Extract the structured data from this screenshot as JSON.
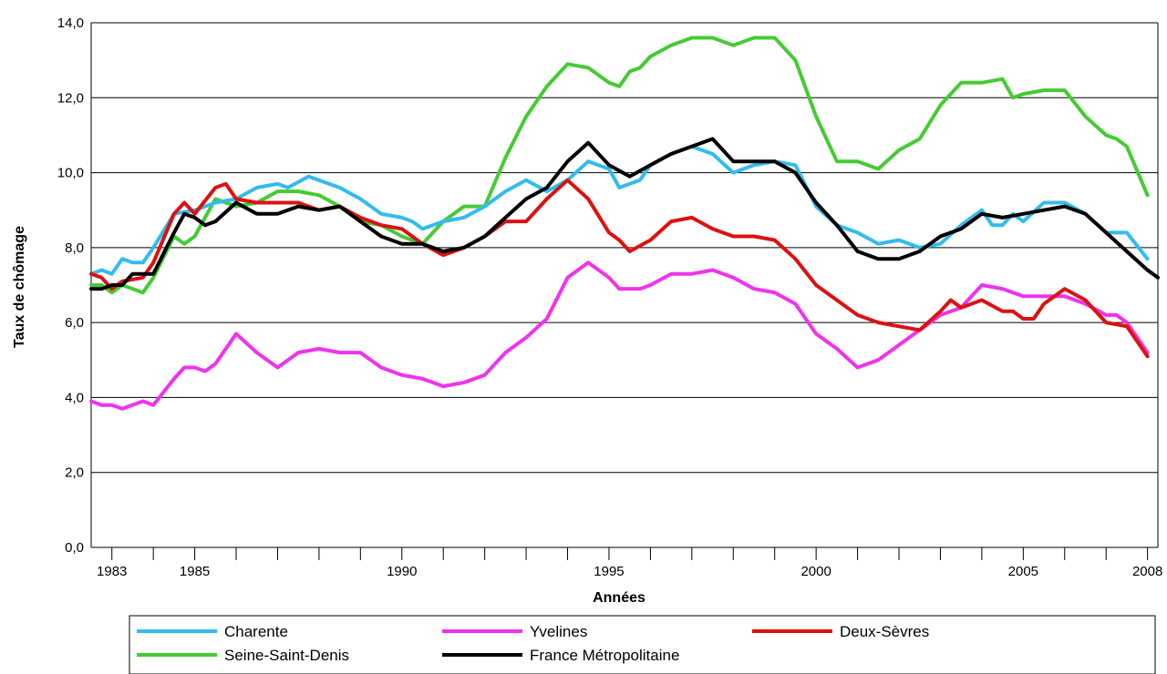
{
  "chart_data": {
    "type": "line",
    "title": "",
    "xlabel": "Années",
    "ylabel": "Taux de chômage",
    "xlim": [
      1982.5,
      2008.25
    ],
    "ylim": [
      0,
      14
    ],
    "y_ticks": [
      "0,0",
      "2,0",
      "4,0",
      "6,0",
      "8,0",
      "10,0",
      "12,0",
      "14,0"
    ],
    "x_ticks": [
      {
        "year": 1983,
        "label": "1983"
      },
      {
        "year": 1985,
        "label": "1985"
      },
      {
        "year": 1990,
        "label": "1990"
      },
      {
        "year": 1995,
        "label": "1995"
      },
      {
        "year": 2000,
        "label": "2000"
      },
      {
        "year": 2005,
        "label": "2005"
      },
      {
        "year": 2008,
        "label": "2008"
      }
    ],
    "grid": "horizontal",
    "legend": "bottom",
    "series": [
      {
        "name": "Charente",
        "color": "#33bbee",
        "points": [
          [
            1982.5,
            7.3
          ],
          [
            1982.75,
            7.4
          ],
          [
            1983,
            7.3
          ],
          [
            1983.25,
            7.7
          ],
          [
            1983.5,
            7.6
          ],
          [
            1983.75,
            7.6
          ],
          [
            1984,
            8.0
          ],
          [
            1984.5,
            8.9
          ],
          [
            1985,
            9.0
          ],
          [
            1985.5,
            9.2
          ],
          [
            1986,
            9.3
          ],
          [
            1986.5,
            9.6
          ],
          [
            1987,
            9.7
          ],
          [
            1987.25,
            9.6
          ],
          [
            1987.75,
            9.9
          ],
          [
            1988.5,
            9.6
          ],
          [
            1989,
            9.3
          ],
          [
            1989.5,
            8.9
          ],
          [
            1990,
            8.8
          ],
          [
            1990.25,
            8.7
          ],
          [
            1990.5,
            8.5
          ],
          [
            1991,
            8.7
          ],
          [
            1991.5,
            8.8
          ],
          [
            1992,
            9.1
          ],
          [
            1992.5,
            9.5
          ],
          [
            1993,
            9.8
          ],
          [
            1993.5,
            9.5
          ],
          [
            1994,
            9.8
          ],
          [
            1994.5,
            10.3
          ],
          [
            1995,
            10.1
          ],
          [
            1995.25,
            9.6
          ],
          [
            1995.75,
            9.8
          ],
          [
            1996,
            10.2
          ],
          [
            1996.5,
            10.5
          ],
          [
            1997,
            10.7
          ],
          [
            1997.5,
            10.5
          ],
          [
            1998,
            10.0
          ],
          [
            1998.5,
            10.2
          ],
          [
            1999,
            10.3
          ],
          [
            1999.5,
            10.2
          ],
          [
            2000,
            9.1
          ],
          [
            2000.5,
            8.6
          ],
          [
            2001,
            8.4
          ],
          [
            2001.5,
            8.1
          ],
          [
            2002,
            8.2
          ],
          [
            2002.5,
            8.0
          ],
          [
            2003,
            8.1
          ],
          [
            2003.5,
            8.6
          ],
          [
            2004,
            9.0
          ],
          [
            2004.25,
            8.6
          ],
          [
            2004.5,
            8.6
          ],
          [
            2004.75,
            8.9
          ],
          [
            2005,
            8.7
          ],
          [
            2005.5,
            9.2
          ],
          [
            2006,
            9.2
          ],
          [
            2006.5,
            8.9
          ],
          [
            2007,
            8.4
          ],
          [
            2007.5,
            8.4
          ],
          [
            2008,
            7.7
          ]
        ]
      },
      {
        "name": "Seine-Saint-Denis",
        "color": "#44cc33",
        "points": [
          [
            1982.5,
            7.0
          ],
          [
            1982.75,
            7.0
          ],
          [
            1983,
            6.8
          ],
          [
            1983.25,
            7.0
          ],
          [
            1983.75,
            6.8
          ],
          [
            1984,
            7.2
          ],
          [
            1984.5,
            8.3
          ],
          [
            1984.75,
            8.1
          ],
          [
            1985,
            8.3
          ],
          [
            1985.5,
            9.3
          ],
          [
            1986,
            9.1
          ],
          [
            1986.5,
            9.2
          ],
          [
            1987,
            9.5
          ],
          [
            1987.5,
            9.5
          ],
          [
            1988,
            9.4
          ],
          [
            1988.5,
            9.1
          ],
          [
            1989,
            8.7
          ],
          [
            1989.5,
            8.6
          ],
          [
            1990,
            8.3
          ],
          [
            1990.5,
            8.1
          ],
          [
            1991,
            8.7
          ],
          [
            1991.5,
            9.1
          ],
          [
            1992,
            9.1
          ],
          [
            1992.5,
            10.4
          ],
          [
            1993,
            11.5
          ],
          [
            1993.5,
            12.3
          ],
          [
            1994,
            12.9
          ],
          [
            1994.5,
            12.8
          ],
          [
            1995,
            12.4
          ],
          [
            1995.25,
            12.3
          ],
          [
            1995.5,
            12.7
          ],
          [
            1995.75,
            12.8
          ],
          [
            1996,
            13.1
          ],
          [
            1996.5,
            13.4
          ],
          [
            1997,
            13.6
          ],
          [
            1997.5,
            13.6
          ],
          [
            1998,
            13.4
          ],
          [
            1998.5,
            13.6
          ],
          [
            1999,
            13.6
          ],
          [
            1999.5,
            13.0
          ],
          [
            2000,
            11.5
          ],
          [
            2000.5,
            10.3
          ],
          [
            2001,
            10.3
          ],
          [
            2001.5,
            10.1
          ],
          [
            2002,
            10.6
          ],
          [
            2002.5,
            10.9
          ],
          [
            2003,
            11.8
          ],
          [
            2003.5,
            12.4
          ],
          [
            2004,
            12.4
          ],
          [
            2004.5,
            12.5
          ],
          [
            2004.75,
            12.0
          ],
          [
            2005,
            12.1
          ],
          [
            2005.5,
            12.2
          ],
          [
            2006,
            12.2
          ],
          [
            2006.5,
            11.5
          ],
          [
            2007,
            11.0
          ],
          [
            2007.25,
            10.9
          ],
          [
            2007.5,
            10.7
          ],
          [
            2008,
            9.4
          ]
        ]
      },
      {
        "name": "Yvelines",
        "color": "#ee33ee",
        "points": [
          [
            1982.5,
            3.9
          ],
          [
            1982.75,
            3.8
          ],
          [
            1983,
            3.8
          ],
          [
            1983.25,
            3.7
          ],
          [
            1983.75,
            3.9
          ],
          [
            1984,
            3.8
          ],
          [
            1984.5,
            4.5
          ],
          [
            1984.75,
            4.8
          ],
          [
            1985,
            4.8
          ],
          [
            1985.25,
            4.7
          ],
          [
            1985.5,
            4.9
          ],
          [
            1986,
            5.7
          ],
          [
            1986.5,
            5.2
          ],
          [
            1987,
            4.8
          ],
          [
            1987.5,
            5.2
          ],
          [
            1988,
            5.3
          ],
          [
            1988.5,
            5.2
          ],
          [
            1989,
            5.2
          ],
          [
            1989.5,
            4.8
          ],
          [
            1990,
            4.6
          ],
          [
            1990.5,
            4.5
          ],
          [
            1991,
            4.3
          ],
          [
            1991.5,
            4.4
          ],
          [
            1992,
            4.6
          ],
          [
            1992.5,
            5.2
          ],
          [
            1993,
            5.6
          ],
          [
            1993.5,
            6.1
          ],
          [
            1994,
            7.2
          ],
          [
            1994.5,
            7.6
          ],
          [
            1995,
            7.2
          ],
          [
            1995.25,
            6.9
          ],
          [
            1995.75,
            6.9
          ],
          [
            1996,
            7.0
          ],
          [
            1996.5,
            7.3
          ],
          [
            1997,
            7.3
          ],
          [
            1997.5,
            7.4
          ],
          [
            1998,
            7.2
          ],
          [
            1998.5,
            6.9
          ],
          [
            1999,
            6.8
          ],
          [
            1999.5,
            6.5
          ],
          [
            2000,
            5.7
          ],
          [
            2000.5,
            5.3
          ],
          [
            2001,
            4.8
          ],
          [
            2001.5,
            5.0
          ],
          [
            2002,
            5.4
          ],
          [
            2002.5,
            5.8
          ],
          [
            2003,
            6.2
          ],
          [
            2003.5,
            6.4
          ],
          [
            2004,
            7.0
          ],
          [
            2004.5,
            6.9
          ],
          [
            2005,
            6.7
          ],
          [
            2005.5,
            6.7
          ],
          [
            2006,
            6.7
          ],
          [
            2006.5,
            6.5
          ],
          [
            2007,
            6.2
          ],
          [
            2007.25,
            6.2
          ],
          [
            2007.5,
            6.0
          ],
          [
            2008,
            5.2
          ]
        ]
      },
      {
        "name": "Deux-Sèvres",
        "color": "#dd1111",
        "points": [
          [
            1982.5,
            7.3
          ],
          [
            1982.75,
            7.2
          ],
          [
            1983,
            6.9
          ],
          [
            1983.25,
            7.1
          ],
          [
            1983.75,
            7.2
          ],
          [
            1984,
            7.6
          ],
          [
            1984.5,
            8.9
          ],
          [
            1984.75,
            9.2
          ],
          [
            1985,
            8.9
          ],
          [
            1985.5,
            9.6
          ],
          [
            1985.75,
            9.7
          ],
          [
            1986,
            9.3
          ],
          [
            1986.5,
            9.2
          ],
          [
            1987,
            9.2
          ],
          [
            1987.5,
            9.2
          ],
          [
            1988,
            9.0
          ],
          [
            1988.5,
            9.1
          ],
          [
            1989,
            8.8
          ],
          [
            1989.5,
            8.6
          ],
          [
            1990,
            8.5
          ],
          [
            1990.5,
            8.1
          ],
          [
            1991,
            7.8
          ],
          [
            1991.5,
            8.0
          ],
          [
            1992,
            8.3
          ],
          [
            1992.5,
            8.7
          ],
          [
            1993,
            8.7
          ],
          [
            1993.5,
            9.3
          ],
          [
            1994,
            9.8
          ],
          [
            1994.5,
            9.3
          ],
          [
            1995,
            8.4
          ],
          [
            1995.25,
            8.2
          ],
          [
            1995.5,
            7.9
          ],
          [
            1996,
            8.2
          ],
          [
            1996.5,
            8.7
          ],
          [
            1997,
            8.8
          ],
          [
            1997.5,
            8.5
          ],
          [
            1998,
            8.3
          ],
          [
            1998.5,
            8.3
          ],
          [
            1999,
            8.2
          ],
          [
            1999.5,
            7.7
          ],
          [
            2000,
            7.0
          ],
          [
            2000.5,
            6.6
          ],
          [
            2001,
            6.2
          ],
          [
            2001.5,
            6.0
          ],
          [
            2002,
            5.9
          ],
          [
            2002.5,
            5.8
          ],
          [
            2003,
            6.3
          ],
          [
            2003.25,
            6.6
          ],
          [
            2003.5,
            6.4
          ],
          [
            2004,
            6.6
          ],
          [
            2004.5,
            6.3
          ],
          [
            2004.75,
            6.3
          ],
          [
            2005,
            6.1
          ],
          [
            2005.25,
            6.1
          ],
          [
            2005.5,
            6.5
          ],
          [
            2006,
            6.9
          ],
          [
            2006.5,
            6.6
          ],
          [
            2007,
            6.0
          ],
          [
            2007.5,
            5.9
          ],
          [
            2008,
            5.1
          ]
        ]
      },
      {
        "name": "France Métropolitaine",
        "color": "#000000",
        "points": [
          [
            1982.5,
            6.9
          ],
          [
            1982.75,
            6.9
          ],
          [
            1983,
            7.0
          ],
          [
            1983.25,
            7.0
          ],
          [
            1983.5,
            7.3
          ],
          [
            1984,
            7.3
          ],
          [
            1984.5,
            8.4
          ],
          [
            1984.75,
            8.9
          ],
          [
            1985,
            8.8
          ],
          [
            1985.25,
            8.6
          ],
          [
            1985.5,
            8.7
          ],
          [
            1986,
            9.2
          ],
          [
            1986.5,
            8.9
          ],
          [
            1987,
            8.9
          ],
          [
            1987.5,
            9.1
          ],
          [
            1988,
            9.0
          ],
          [
            1988.5,
            9.1
          ],
          [
            1989,
            8.7
          ],
          [
            1989.5,
            8.3
          ],
          [
            1990,
            8.1
          ],
          [
            1990.5,
            8.1
          ],
          [
            1991,
            7.9
          ],
          [
            1991.5,
            8.0
          ],
          [
            1992,
            8.3
          ],
          [
            1992.5,
            8.8
          ],
          [
            1993,
            9.3
          ],
          [
            1993.5,
            9.6
          ],
          [
            1994,
            10.3
          ],
          [
            1994.5,
            10.8
          ],
          [
            1995,
            10.2
          ],
          [
            1995.5,
            9.9
          ],
          [
            1996,
            10.2
          ],
          [
            1996.5,
            10.5
          ],
          [
            1997,
            10.7
          ],
          [
            1997.5,
            10.9
          ],
          [
            1998,
            10.3
          ],
          [
            1998.5,
            10.3
          ],
          [
            1999,
            10.3
          ],
          [
            1999.5,
            10.0
          ],
          [
            2000,
            9.2
          ],
          [
            2000.5,
            8.6
          ],
          [
            2001,
            7.9
          ],
          [
            2001.5,
            7.7
          ],
          [
            2002,
            7.7
          ],
          [
            2002.5,
            7.9
          ],
          [
            2003,
            8.3
          ],
          [
            2003.5,
            8.5
          ],
          [
            2004,
            8.9
          ],
          [
            2004.5,
            8.8
          ],
          [
            2005,
            8.9
          ],
          [
            2005.5,
            9.0
          ],
          [
            2006,
            9.1
          ],
          [
            2006.5,
            8.9
          ],
          [
            2007,
            8.4
          ],
          [
            2007.5,
            7.9
          ],
          [
            2008,
            7.4
          ],
          [
            2008.25,
            7.2
          ]
        ]
      }
    ]
  }
}
